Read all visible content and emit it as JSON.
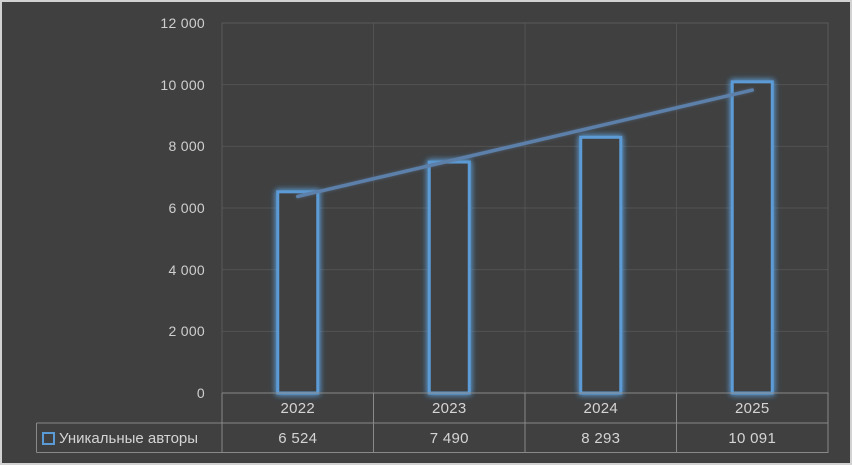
{
  "window": {
    "background": "#404040",
    "frame_border_color": "#d2d2d2"
  },
  "chart_data": {
    "type": "bar",
    "title": "",
    "categories": [
      "2022",
      "2023",
      "2024",
      "2025"
    ],
    "series": [
      {
        "name": "Уникальные авторы",
        "values": [
          6524,
          7490,
          8293,
          10091
        ],
        "value_labels": [
          "6 524",
          "7 490",
          "8 293",
          "10 091"
        ]
      }
    ],
    "trendline": {
      "type": "linear"
    },
    "ylim": [
      0,
      12000
    ],
    "ytick_step": 2000,
    "ytick_labels": [
      "0",
      "2 000",
      "4 000",
      "6 000",
      "8 000",
      "10 000",
      "12 000"
    ],
    "grid": true,
    "legend_position": "bottom-left-data-table",
    "data_table_shown": true,
    "colors": {
      "bar_stroke": "#5b9bd5",
      "bar_fill": "#404040",
      "bar_glow": "#5b9bd5",
      "trendline": "#5b80aa",
      "gridline": "#525252",
      "plot_border": "#5a5a5a",
      "table_border": "#898989",
      "text": "#d4d4d4",
      "axis_text": "#cfcfcf"
    }
  }
}
